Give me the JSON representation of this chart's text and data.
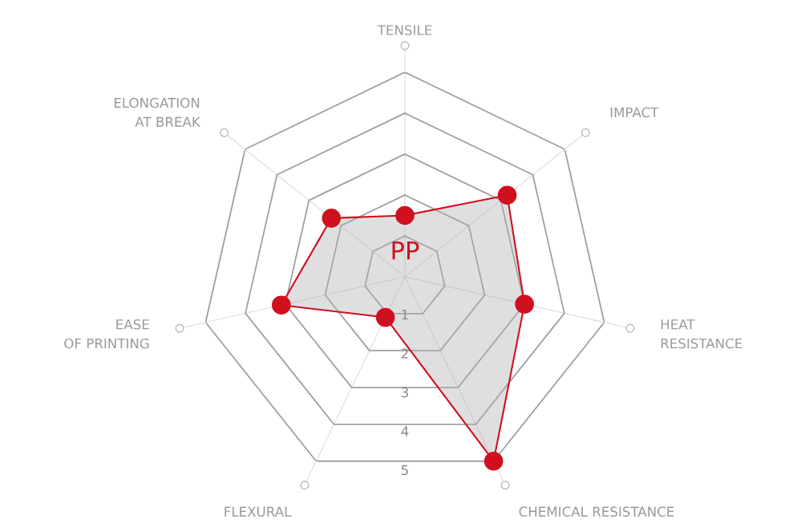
{
  "chart_data": {
    "type": "radar",
    "categories": [
      "TENSILE",
      "IMPACT",
      "HEAT\nRESISTANCE",
      "CHEMICAL RESISTANCE",
      "FLEXURAL",
      "EASE\nOF PRINTING",
      "ELONGATION\nAT BREAK"
    ],
    "series": [
      {
        "name": "PP",
        "color": "#d0101f",
        "values": [
          1.5,
          3.2,
          3,
          5,
          1.1,
          3.1,
          2.3
        ]
      }
    ],
    "ylim": [
      0,
      5
    ],
    "yticks": [
      1,
      2,
      3,
      4,
      5
    ],
    "grid": true,
    "marker": "circle",
    "line_style": "solid",
    "legend": "center"
  }
}
